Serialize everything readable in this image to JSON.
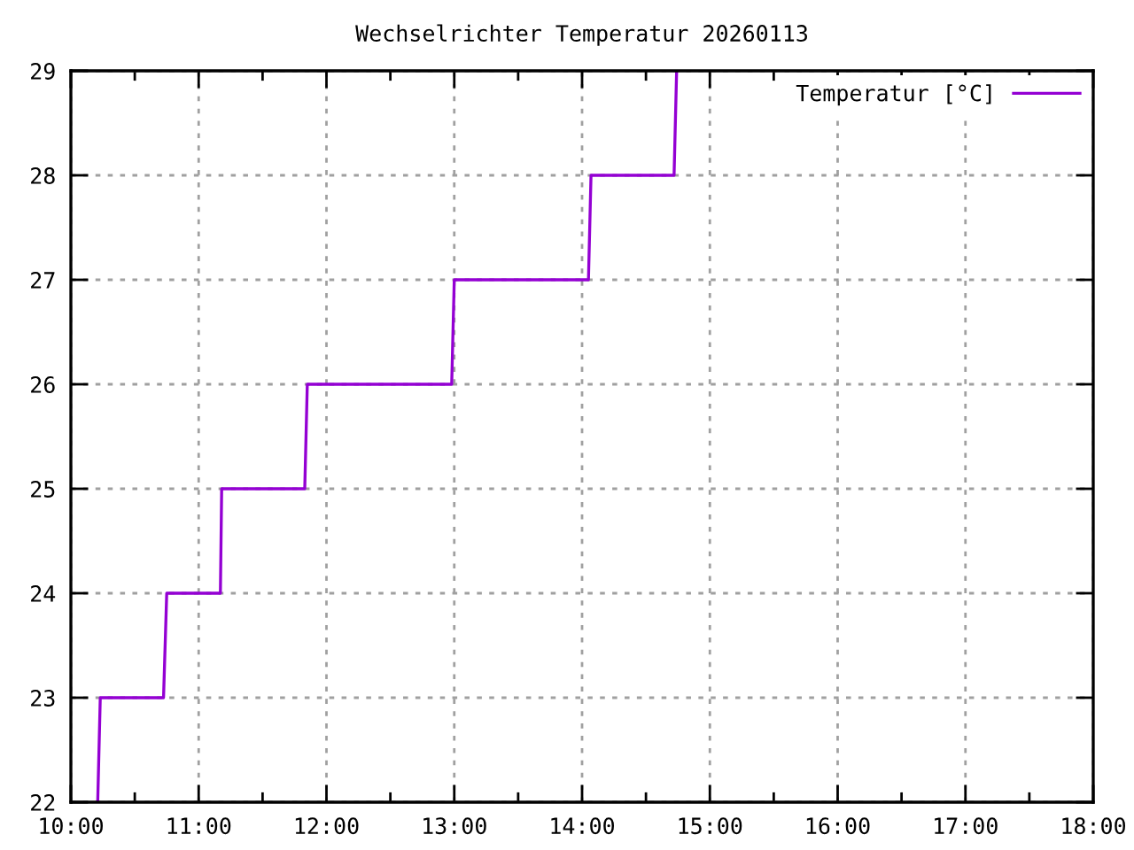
{
  "chart_data": {
    "type": "line",
    "title": "Wechselrichter Temperatur 20260113",
    "series": [
      {
        "name": "Temperatur [°C]",
        "color": "#9400d3",
        "x": [
          10.21,
          10.23,
          10.725,
          10.75,
          11.17,
          11.18,
          11.83,
          11.85,
          12.98,
          13.0,
          14.05,
          14.07,
          14.72,
          14.74
        ],
        "values": [
          22,
          23,
          23,
          24,
          24,
          25,
          25,
          26,
          26,
          27,
          27,
          28,
          28,
          29
        ]
      }
    ],
    "xlim": [
      10,
      18
    ],
    "xticks": [
      {
        "value": 10,
        "label": "10:00"
      },
      {
        "value": 10.5,
        "label": null
      },
      {
        "value": 11,
        "label": "11:00"
      },
      {
        "value": 11.5,
        "label": null
      },
      {
        "value": 12,
        "label": "12:00"
      },
      {
        "value": 12.5,
        "label": null
      },
      {
        "value": 13,
        "label": "13:00"
      },
      {
        "value": 13.5,
        "label": null
      },
      {
        "value": 14,
        "label": "14:00"
      },
      {
        "value": 14.5,
        "label": null
      },
      {
        "value": 15,
        "label": "15:00"
      },
      {
        "value": 15.5,
        "label": null
      },
      {
        "value": 16,
        "label": "16:00"
      },
      {
        "value": 16.5,
        "label": null
      },
      {
        "value": 17,
        "label": "17:00"
      },
      {
        "value": 17.5,
        "label": null
      },
      {
        "value": 18,
        "label": "18:00"
      }
    ],
    "ylim": [
      22,
      29
    ],
    "yticks": [
      22,
      23,
      24,
      25,
      26,
      27,
      28,
      29
    ],
    "grid": true,
    "legend": "top right",
    "marker": "none",
    "line_style": "solid"
  }
}
